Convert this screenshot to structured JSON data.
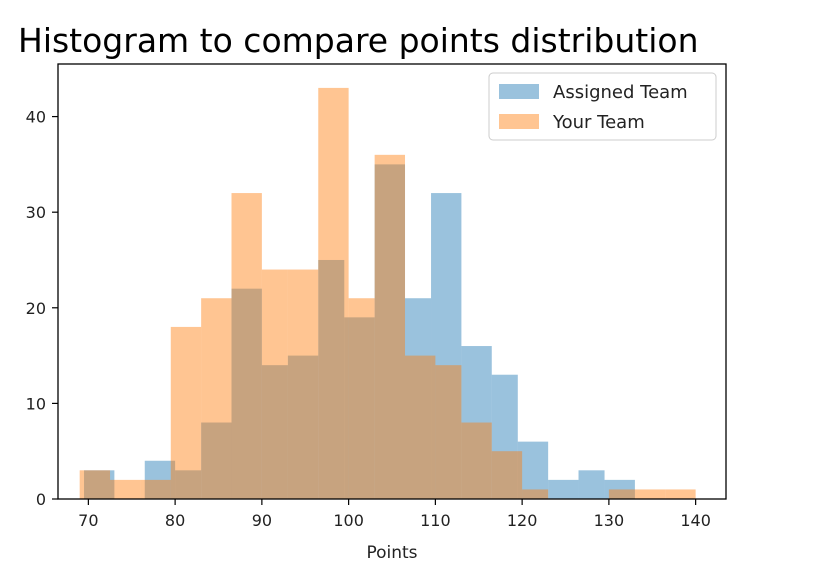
{
  "chart_data": {
    "type": "histogram",
    "title": "Histogram to compare points distribution",
    "xlabel": "Points",
    "ylabel": "",
    "xlim": [
      66.5,
      143.5
    ],
    "ylim": [
      0,
      45.5
    ],
    "xticks": [
      70,
      80,
      90,
      100,
      110,
      120,
      130,
      140
    ],
    "yticks": [
      0,
      10,
      20,
      30,
      40
    ],
    "legend_position": "top-right",
    "grid": false,
    "series": [
      {
        "name": "Assigned Team",
        "color": "#1f77b4",
        "opacity": 0.45,
        "bins": [
          {
            "x0": 69.5,
            "x1": 73.0,
            "count": 3
          },
          {
            "x0": 73.0,
            "x1": 76.5,
            "count": 0
          },
          {
            "x0": 76.5,
            "x1": 80.0,
            "count": 4
          },
          {
            "x0": 80.0,
            "x1": 83.0,
            "count": 3
          },
          {
            "x0": 83.0,
            "x1": 86.5,
            "count": 8
          },
          {
            "x0": 86.5,
            "x1": 90.0,
            "count": 22
          },
          {
            "x0": 90.0,
            "x1": 93.0,
            "count": 14
          },
          {
            "x0": 93.0,
            "x1": 96.5,
            "count": 15
          },
          {
            "x0": 96.5,
            "x1": 99.5,
            "count": 25
          },
          {
            "x0": 99.5,
            "x1": 103.0,
            "count": 19
          },
          {
            "x0": 103.0,
            "x1": 106.5,
            "count": 35
          },
          {
            "x0": 106.5,
            "x1": 109.5,
            "count": 21
          },
          {
            "x0": 109.5,
            "x1": 113.0,
            "count": 32
          },
          {
            "x0": 113.0,
            "x1": 116.5,
            "count": 16
          },
          {
            "x0": 116.5,
            "x1": 119.5,
            "count": 13
          },
          {
            "x0": 119.5,
            "x1": 123.0,
            "count": 6
          },
          {
            "x0": 123.0,
            "x1": 126.5,
            "count": 2
          },
          {
            "x0": 126.5,
            "x1": 129.5,
            "count": 3
          },
          {
            "x0": 129.5,
            "x1": 133.0,
            "count": 2
          }
        ]
      },
      {
        "name": "Your Team",
        "color": "#ff7f0e",
        "opacity": 0.45,
        "bins": [
          {
            "x0": 69.0,
            "x1": 72.5,
            "count": 3
          },
          {
            "x0": 72.5,
            "x1": 76.0,
            "count": 2
          },
          {
            "x0": 76.0,
            "x1": 79.5,
            "count": 2
          },
          {
            "x0": 79.5,
            "x1": 83.0,
            "count": 18
          },
          {
            "x0": 83.0,
            "x1": 86.5,
            "count": 21
          },
          {
            "x0": 86.5,
            "x1": 90.0,
            "count": 32
          },
          {
            "x0": 90.0,
            "x1": 93.0,
            "count": 24
          },
          {
            "x0": 93.0,
            "x1": 96.5,
            "count": 24
          },
          {
            "x0": 96.5,
            "x1": 100.0,
            "count": 43
          },
          {
            "x0": 100.0,
            "x1": 103.0,
            "count": 21
          },
          {
            "x0": 103.0,
            "x1": 106.5,
            "count": 36
          },
          {
            "x0": 106.5,
            "x1": 110.0,
            "count": 15
          },
          {
            "x0": 110.0,
            "x1": 113.0,
            "count": 14
          },
          {
            "x0": 113.0,
            "x1": 116.5,
            "count": 8
          },
          {
            "x0": 116.5,
            "x1": 120.0,
            "count": 5
          },
          {
            "x0": 120.0,
            "x1": 123.0,
            "count": 1
          },
          {
            "x0": 123.0,
            "x1": 126.5,
            "count": 0
          },
          {
            "x0": 126.5,
            "x1": 130.0,
            "count": 0
          },
          {
            "x0": 130.0,
            "x1": 133.0,
            "count": 1
          },
          {
            "x0": 133.0,
            "x1": 136.5,
            "count": 1
          },
          {
            "x0": 136.5,
            "x1": 140.0,
            "count": 1
          }
        ]
      }
    ]
  }
}
